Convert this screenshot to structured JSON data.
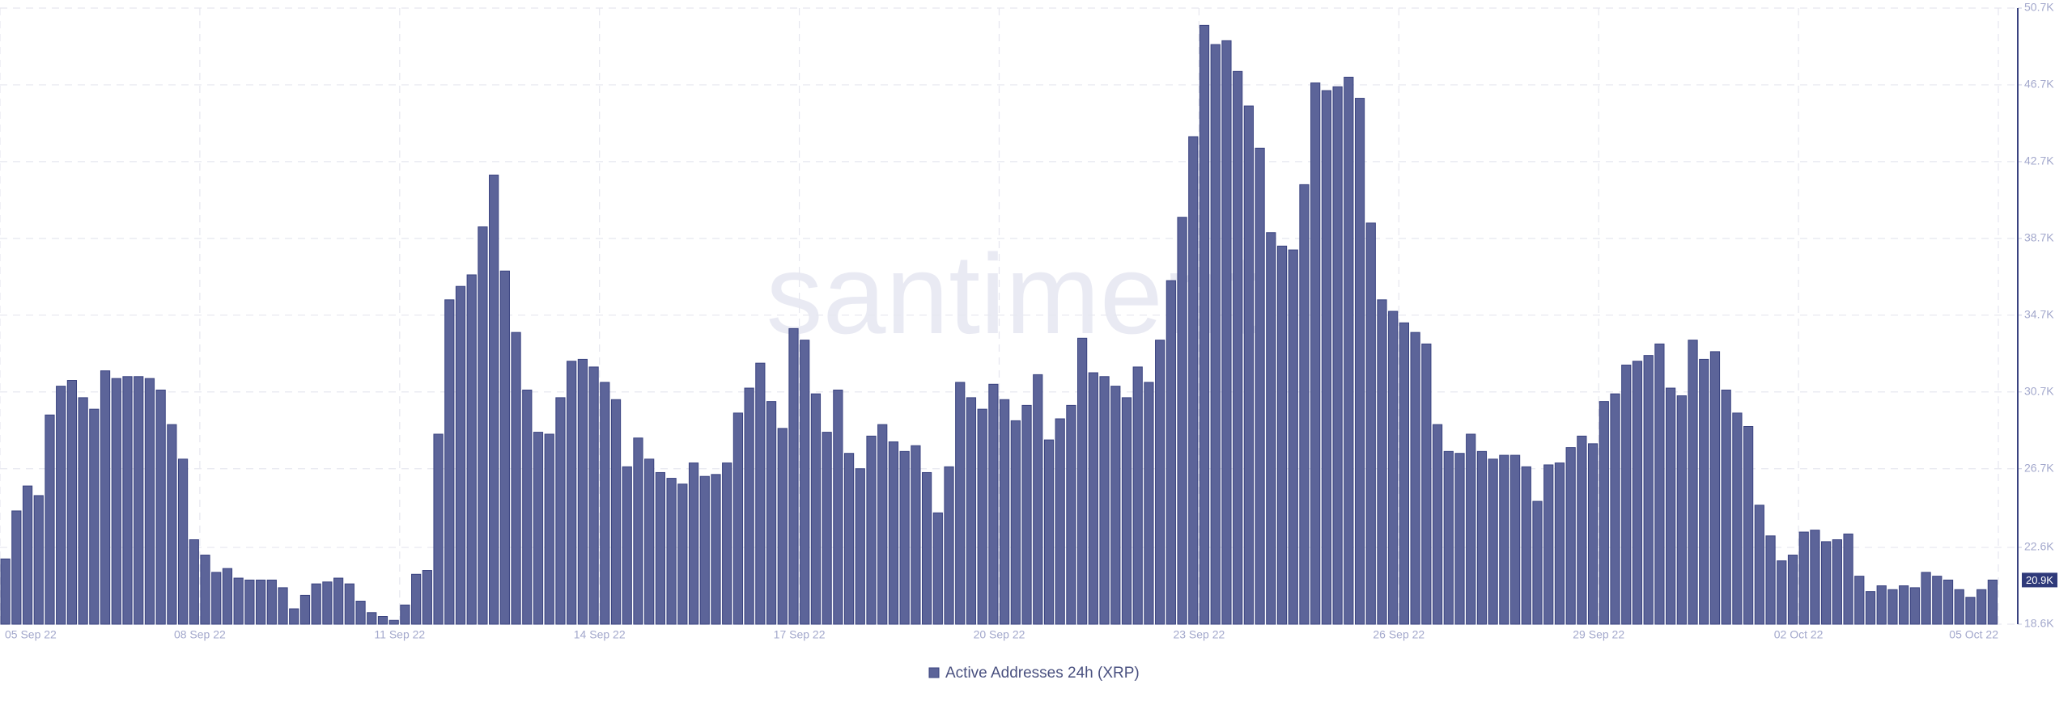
{
  "chart_data": {
    "type": "bar",
    "watermark": "santiment",
    "x_labels": [
      "05 Sep 22",
      "08 Sep 22",
      "11 Sep 22",
      "14 Sep 22",
      "17 Sep 22",
      "20 Sep 22",
      "23 Sep 22",
      "26 Sep 22",
      "29 Sep 22",
      "02 Oct 22",
      "05 Oct 22"
    ],
    "series": [
      {
        "name": "Active Addresses 24h (XRP)",
        "color": "#5c6499",
        "values": [
          22000,
          24500,
          25800,
          25300,
          29500,
          31000,
          31300,
          30400,
          29800,
          31800,
          31400,
          31500,
          31500,
          31400,
          30800,
          29000,
          27200,
          23000,
          22200,
          21300,
          21500,
          21000,
          20900,
          20900,
          20900,
          20500,
          19400,
          20100,
          20700,
          20800,
          21000,
          20700,
          19800,
          19200,
          19000,
          18800,
          19600,
          21200,
          21400,
          28500,
          35500,
          36200,
          36800,
          39300,
          42000,
          37000,
          33800,
          30800,
          28600,
          28500,
          30400,
          32300,
          32400,
          32000,
          31200,
          30300,
          26800,
          28300,
          27200,
          26500,
          26200,
          25900,
          27000,
          26300,
          26400,
          27000,
          29600,
          30900,
          32200,
          30200,
          28800,
          34000,
          33400,
          30600,
          28600,
          30800,
          27500,
          26700,
          28400,
          29000,
          28100,
          27600,
          27900,
          26500,
          24400,
          26800,
          31200,
          30400,
          29800,
          31100,
          30300,
          29200,
          30000,
          31600,
          28200,
          29300,
          30000,
          33500,
          31700,
          31500,
          31000,
          30400,
          32000,
          31200,
          33400,
          36500,
          39800,
          44000,
          49800,
          48800,
          49000,
          47400,
          45600,
          43400,
          39000,
          38300,
          38100,
          41500,
          46800,
          46400,
          46600,
          47100,
          46000,
          39500,
          35500,
          34900,
          34300,
          33800,
          33200,
          29000,
          27600,
          27500,
          28500,
          27600,
          27200,
          27400,
          27400,
          26800,
          25000,
          26900,
          27000,
          27800,
          28400,
          28000,
          30200,
          30600,
          32100,
          32300,
          32600,
          33200,
          30900,
          30500,
          33400,
          32400,
          32800,
          30800,
          29600,
          28900,
          24800,
          23200,
          21900,
          22200,
          23400,
          23500,
          22900,
          23000,
          23300,
          21100,
          20300,
          20600,
          20400,
          20600,
          20500,
          21300,
          21100,
          20900,
          20400,
          20000,
          20400,
          20900
        ]
      }
    ],
    "current_value": {
      "value": 20900,
      "label": "20.9K"
    },
    "ylim": [
      18600,
      50700
    ],
    "yticks": [
      {
        "value": 18600,
        "label": "18.6K"
      },
      {
        "value": 22600,
        "label": "22.6K"
      },
      {
        "value": 26700,
        "label": "26.7K"
      },
      {
        "value": 30700,
        "label": "30.7K"
      },
      {
        "value": 34700,
        "label": "34.7K"
      },
      {
        "value": 38700,
        "label": "38.7K"
      },
      {
        "value": 42700,
        "label": "42.7K"
      },
      {
        "value": 46700,
        "label": "46.7K"
      },
      {
        "value": 50700,
        "label": "50.7K"
      }
    ],
    "grid": true
  }
}
